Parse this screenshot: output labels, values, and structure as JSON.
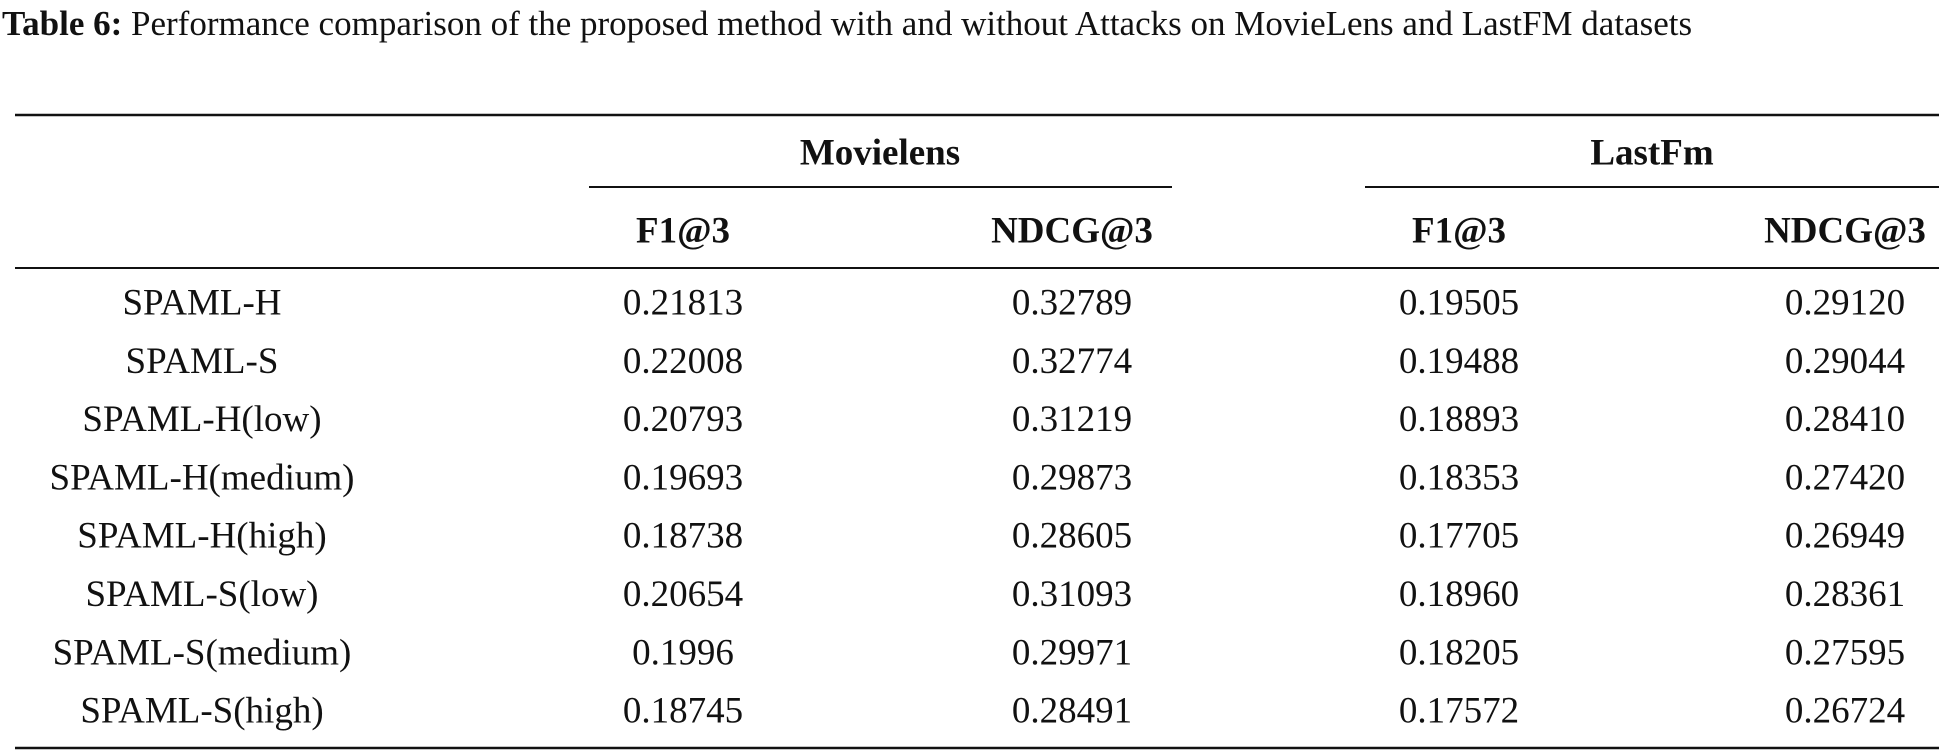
{
  "caption": {
    "label": "Table 6:",
    "text": "Performance comparison of the proposed method with and without Attacks on MovieLens and LastFM datasets"
  },
  "table": {
    "groups": [
      "Movielens",
      "LastFm"
    ],
    "columns": [
      "F1@3",
      "NDCG@3",
      "F1@3",
      "NDCG@3"
    ],
    "rows": [
      [
        "SPAML-H",
        "0.21813",
        "0.32789",
        "0.19505",
        "0.29120"
      ],
      [
        "SPAML-S",
        "0.22008",
        "0.32774",
        "0.19488",
        "0.29044"
      ],
      [
        "SPAML-H(low)",
        "0.20793",
        "0.31219",
        "0.18893",
        "0.28410"
      ],
      [
        "SPAML-H(medium)",
        "0.19693",
        "0.29873",
        "0.18353",
        "0.27420"
      ],
      [
        "SPAML-H(high)",
        "0.18738",
        "0.28605",
        "0.17705",
        "0.26949"
      ],
      [
        "SPAML-S(low)",
        "0.20654",
        "0.31093",
        "0.18960",
        "0.28361"
      ],
      [
        "SPAML-S(medium)",
        "0.1996",
        "0.29971",
        "0.18205",
        "0.27595"
      ],
      [
        "SPAML-S(high)",
        "0.18745",
        "0.28491",
        "0.17572",
        "0.26724"
      ]
    ]
  }
}
